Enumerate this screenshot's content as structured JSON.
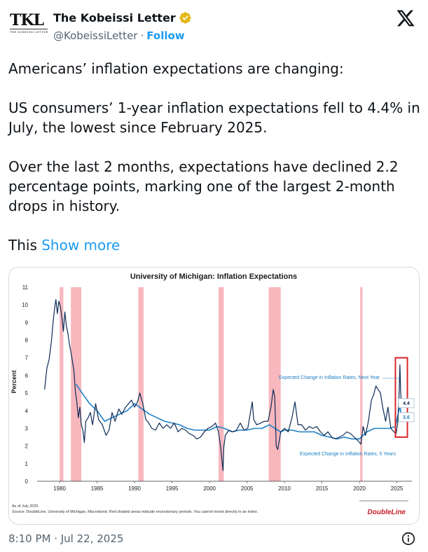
{
  "account": {
    "logo_text": "TKL",
    "logo_subtext": "THE KOBEISSI LETTER",
    "name": "The Kobeissi Letter",
    "handle": "@KobeissiLetter",
    "separator": "·",
    "follow_label": "Follow"
  },
  "tweet": {
    "paragraph1": "Americans’ inflation expectations are changing:",
    "paragraph2": "US consumers’ 1-year inflation expectations fell to 4.4% in July, the lowest since February 2025.",
    "paragraph3": "Over the last 2 months, expectations have declined 2.2 percentage points, marking one of the largest 2-month drops in history.",
    "paragraph4_start": "This",
    "show_more": "Show more",
    "timestamp": "8:10 PM · Jul 22, 2025"
  },
  "colors": {
    "accent": "#1d9bf0",
    "verified": "#e2b719",
    "recession": "#f7b7bd",
    "series_next_year": "#0d2b57",
    "series_5_years": "#1f7fc4",
    "highlight_box": "#d9262b"
  },
  "chart_data": {
    "type": "line",
    "title": "University of Michigan: Inflation Expectations",
    "xlabel": "",
    "ylabel": "Percent",
    "xlim": [
      1977,
      2027
    ],
    "ylim": [
      0,
      11
    ],
    "x_ticks": [
      "1980",
      "1985",
      "1990",
      "1995",
      "2000",
      "2005",
      "2010",
      "2015",
      "2020",
      "2025"
    ],
    "y_ticks": [
      "0",
      "1",
      "2",
      "3",
      "4",
      "5",
      "6",
      "7",
      "8",
      "9",
      "10",
      "11"
    ],
    "recessions": [
      [
        1980.0,
        1980.5
      ],
      [
        1981.5,
        1982.9
      ],
      [
        1990.5,
        1991.2
      ],
      [
        2001.2,
        2001.9
      ],
      [
        2007.9,
        2009.5
      ],
      [
        2020.1,
        2020.4
      ]
    ],
    "series": [
      {
        "name": "Expected Change in Inflation Rates, Next Year",
        "label": "Expected Change in Inflation Rates, Next Year",
        "end_label": "4.4",
        "points": [
          [
            1978.0,
            5.2
          ],
          [
            1978.3,
            6.4
          ],
          [
            1978.6,
            6.9
          ],
          [
            1978.9,
            7.9
          ],
          [
            1979.1,
            8.9
          ],
          [
            1979.3,
            9.7
          ],
          [
            1979.5,
            10.3
          ],
          [
            1979.7,
            9.5
          ],
          [
            1979.9,
            10.2
          ],
          [
            1980.1,
            9.9
          ],
          [
            1980.3,
            9.3
          ],
          [
            1980.5,
            8.5
          ],
          [
            1980.7,
            9.6
          ],
          [
            1980.9,
            8.8
          ],
          [
            1981.1,
            8.4
          ],
          [
            1981.3,
            7.8
          ],
          [
            1981.6,
            7.1
          ],
          [
            1981.9,
            6.3
          ],
          [
            1982.1,
            5.1
          ],
          [
            1982.3,
            4.5
          ],
          [
            1982.5,
            3.6
          ],
          [
            1982.7,
            4.2
          ],
          [
            1982.9,
            3.2
          ],
          [
            1983.1,
            2.9
          ],
          [
            1983.3,
            2.2
          ],
          [
            1983.5,
            3.4
          ],
          [
            1983.8,
            3.6
          ],
          [
            1984.1,
            3.9
          ],
          [
            1984.4,
            3.2
          ],
          [
            1984.8,
            4.4
          ],
          [
            1985.2,
            3.5
          ],
          [
            1985.7,
            3.2
          ],
          [
            1986.2,
            2.6
          ],
          [
            1986.6,
            2.9
          ],
          [
            1987.0,
            3.9
          ],
          [
            1987.4,
            3.4
          ],
          [
            1987.9,
            4.1
          ],
          [
            1988.3,
            3.8
          ],
          [
            1988.8,
            4.2
          ],
          [
            1989.2,
            4.4
          ],
          [
            1989.6,
            4.6
          ],
          [
            1990.0,
            4.2
          ],
          [
            1990.4,
            4.5
          ],
          [
            1990.7,
            5.0
          ],
          [
            1990.9,
            4.7
          ],
          [
            1991.1,
            4.4
          ],
          [
            1991.5,
            3.5
          ],
          [
            1991.9,
            3.3
          ],
          [
            1992.3,
            3.0
          ],
          [
            1992.8,
            2.9
          ],
          [
            1993.3,
            3.3
          ],
          [
            1993.8,
            3.0
          ],
          [
            1994.3,
            3.2
          ],
          [
            1994.8,
            3.0
          ],
          [
            1995.3,
            3.3
          ],
          [
            1995.8,
            2.8
          ],
          [
            1996.3,
            3.0
          ],
          [
            1996.8,
            2.9
          ],
          [
            1997.3,
            2.7
          ],
          [
            1997.8,
            2.6
          ],
          [
            1998.3,
            2.4
          ],
          [
            1998.8,
            2.5
          ],
          [
            1999.3,
            2.8
          ],
          [
            1999.8,
            3.0
          ],
          [
            2000.3,
            3.1
          ],
          [
            2000.8,
            3.3
          ],
          [
            2001.2,
            2.8
          ],
          [
            2001.5,
            1.9
          ],
          [
            2001.7,
            1.0
          ],
          [
            2001.8,
            0.6
          ],
          [
            2001.9,
            1.9
          ],
          [
            2002.1,
            2.6
          ],
          [
            2002.6,
            2.9
          ],
          [
            2003.1,
            2.8
          ],
          [
            2003.6,
            2.9
          ],
          [
            2004.1,
            3.3
          ],
          [
            2004.6,
            2.9
          ],
          [
            2005.1,
            3.0
          ],
          [
            2005.7,
            4.5
          ],
          [
            2005.9,
            3.5
          ],
          [
            2006.3,
            3.2
          ],
          [
            2006.8,
            3.3
          ],
          [
            2007.3,
            3.4
          ],
          [
            2007.8,
            3.4
          ],
          [
            2008.2,
            4.2
          ],
          [
            2008.5,
            5.2
          ],
          [
            2008.7,
            4.8
          ],
          [
            2008.9,
            2.0
          ],
          [
            2009.1,
            1.8
          ],
          [
            2009.5,
            2.8
          ],
          [
            2010.0,
            3.0
          ],
          [
            2010.5,
            2.8
          ],
          [
            2011.0,
            3.6
          ],
          [
            2011.4,
            4.5
          ],
          [
            2011.8,
            3.2
          ],
          [
            2012.3,
            3.2
          ],
          [
            2012.8,
            2.9
          ],
          [
            2013.3,
            3.1
          ],
          [
            2013.8,
            3.0
          ],
          [
            2014.3,
            3.1
          ],
          [
            2014.8,
            2.8
          ],
          [
            2015.3,
            2.6
          ],
          [
            2015.8,
            2.8
          ],
          [
            2016.3,
            2.5
          ],
          [
            2016.8,
            2.4
          ],
          [
            2017.3,
            2.5
          ],
          [
            2017.8,
            2.6
          ],
          [
            2018.3,
            2.8
          ],
          [
            2018.8,
            2.7
          ],
          [
            2019.3,
            2.5
          ],
          [
            2019.8,
            2.3
          ],
          [
            2020.2,
            2.1
          ],
          [
            2020.5,
            3.1
          ],
          [
            2020.8,
            2.6
          ],
          [
            2021.2,
            3.4
          ],
          [
            2021.6,
            4.6
          ],
          [
            2021.9,
            4.9
          ],
          [
            2022.2,
            5.4
          ],
          [
            2022.5,
            5.2
          ],
          [
            2022.8,
            5.0
          ],
          [
            2023.1,
            4.2
          ],
          [
            2023.5,
            3.4
          ],
          [
            2023.8,
            4.2
          ],
          [
            2024.2,
            3.0
          ],
          [
            2024.6,
            2.8
          ],
          [
            2024.9,
            2.7
          ],
          [
            2025.1,
            3.3
          ],
          [
            2025.3,
            5.0
          ],
          [
            2025.4,
            6.6
          ],
          [
            2025.5,
            5.1
          ],
          [
            2025.6,
            4.4
          ]
        ]
      },
      {
        "name": "Expected Change in Inflation Rates, 5 Years",
        "label": "Expected Change in Inflation Rates, 5 Years",
        "end_label": "3.6",
        "points": [
          [
            1982.2,
            5.5
          ],
          [
            1983.0,
            5.0
          ],
          [
            1984.0,
            4.4
          ],
          [
            1985.0,
            4.0
          ],
          [
            1986.0,
            3.4
          ],
          [
            1987.0,
            3.6
          ],
          [
            1988.0,
            3.8
          ],
          [
            1989.0,
            4.0
          ],
          [
            1990.0,
            4.4
          ],
          [
            1991.0,
            4.1
          ],
          [
            1992.0,
            3.8
          ],
          [
            1993.0,
            3.6
          ],
          [
            1994.0,
            3.4
          ],
          [
            1995.0,
            3.3
          ],
          [
            1996.0,
            3.2
          ],
          [
            1997.0,
            3.0
          ],
          [
            1998.0,
            2.9
          ],
          [
            1999.0,
            2.9
          ],
          [
            2000.0,
            2.9
          ],
          [
            2001.0,
            3.1
          ],
          [
            2002.0,
            3.0
          ],
          [
            2003.0,
            2.8
          ],
          [
            2004.0,
            2.9
          ],
          [
            2005.0,
            2.9
          ],
          [
            2006.0,
            3.0
          ],
          [
            2007.0,
            3.0
          ],
          [
            2008.0,
            3.2
          ],
          [
            2008.7,
            3.0
          ],
          [
            2009.5,
            2.8
          ],
          [
            2010.0,
            2.9
          ],
          [
            2011.0,
            2.9
          ],
          [
            2012.0,
            2.8
          ],
          [
            2013.0,
            2.8
          ],
          [
            2014.0,
            2.8
          ],
          [
            2015.0,
            2.6
          ],
          [
            2016.0,
            2.5
          ],
          [
            2017.0,
            2.4
          ],
          [
            2018.0,
            2.5
          ],
          [
            2019.0,
            2.4
          ],
          [
            2020.0,
            2.4
          ],
          [
            2020.5,
            2.6
          ],
          [
            2021.0,
            2.8
          ],
          [
            2022.0,
            3.0
          ],
          [
            2023.0,
            3.0
          ],
          [
            2024.0,
            3.0
          ],
          [
            2024.8,
            3.1
          ],
          [
            2025.2,
            3.9
          ],
          [
            2025.4,
            4.3
          ],
          [
            2025.6,
            3.6
          ]
        ]
      }
    ],
    "highlight": {
      "x_range": [
        2024.8,
        2026.4
      ],
      "y_range": [
        2.5,
        7.0
      ]
    },
    "notes": {
      "as_of": "As of July 2025",
      "source": "Source: DoubleLine, University of Michigan, Macrobond. Red shaded areas indicate recessionary periods. You cannot invest directly in an index.",
      "brand": "DoubleLine"
    }
  }
}
